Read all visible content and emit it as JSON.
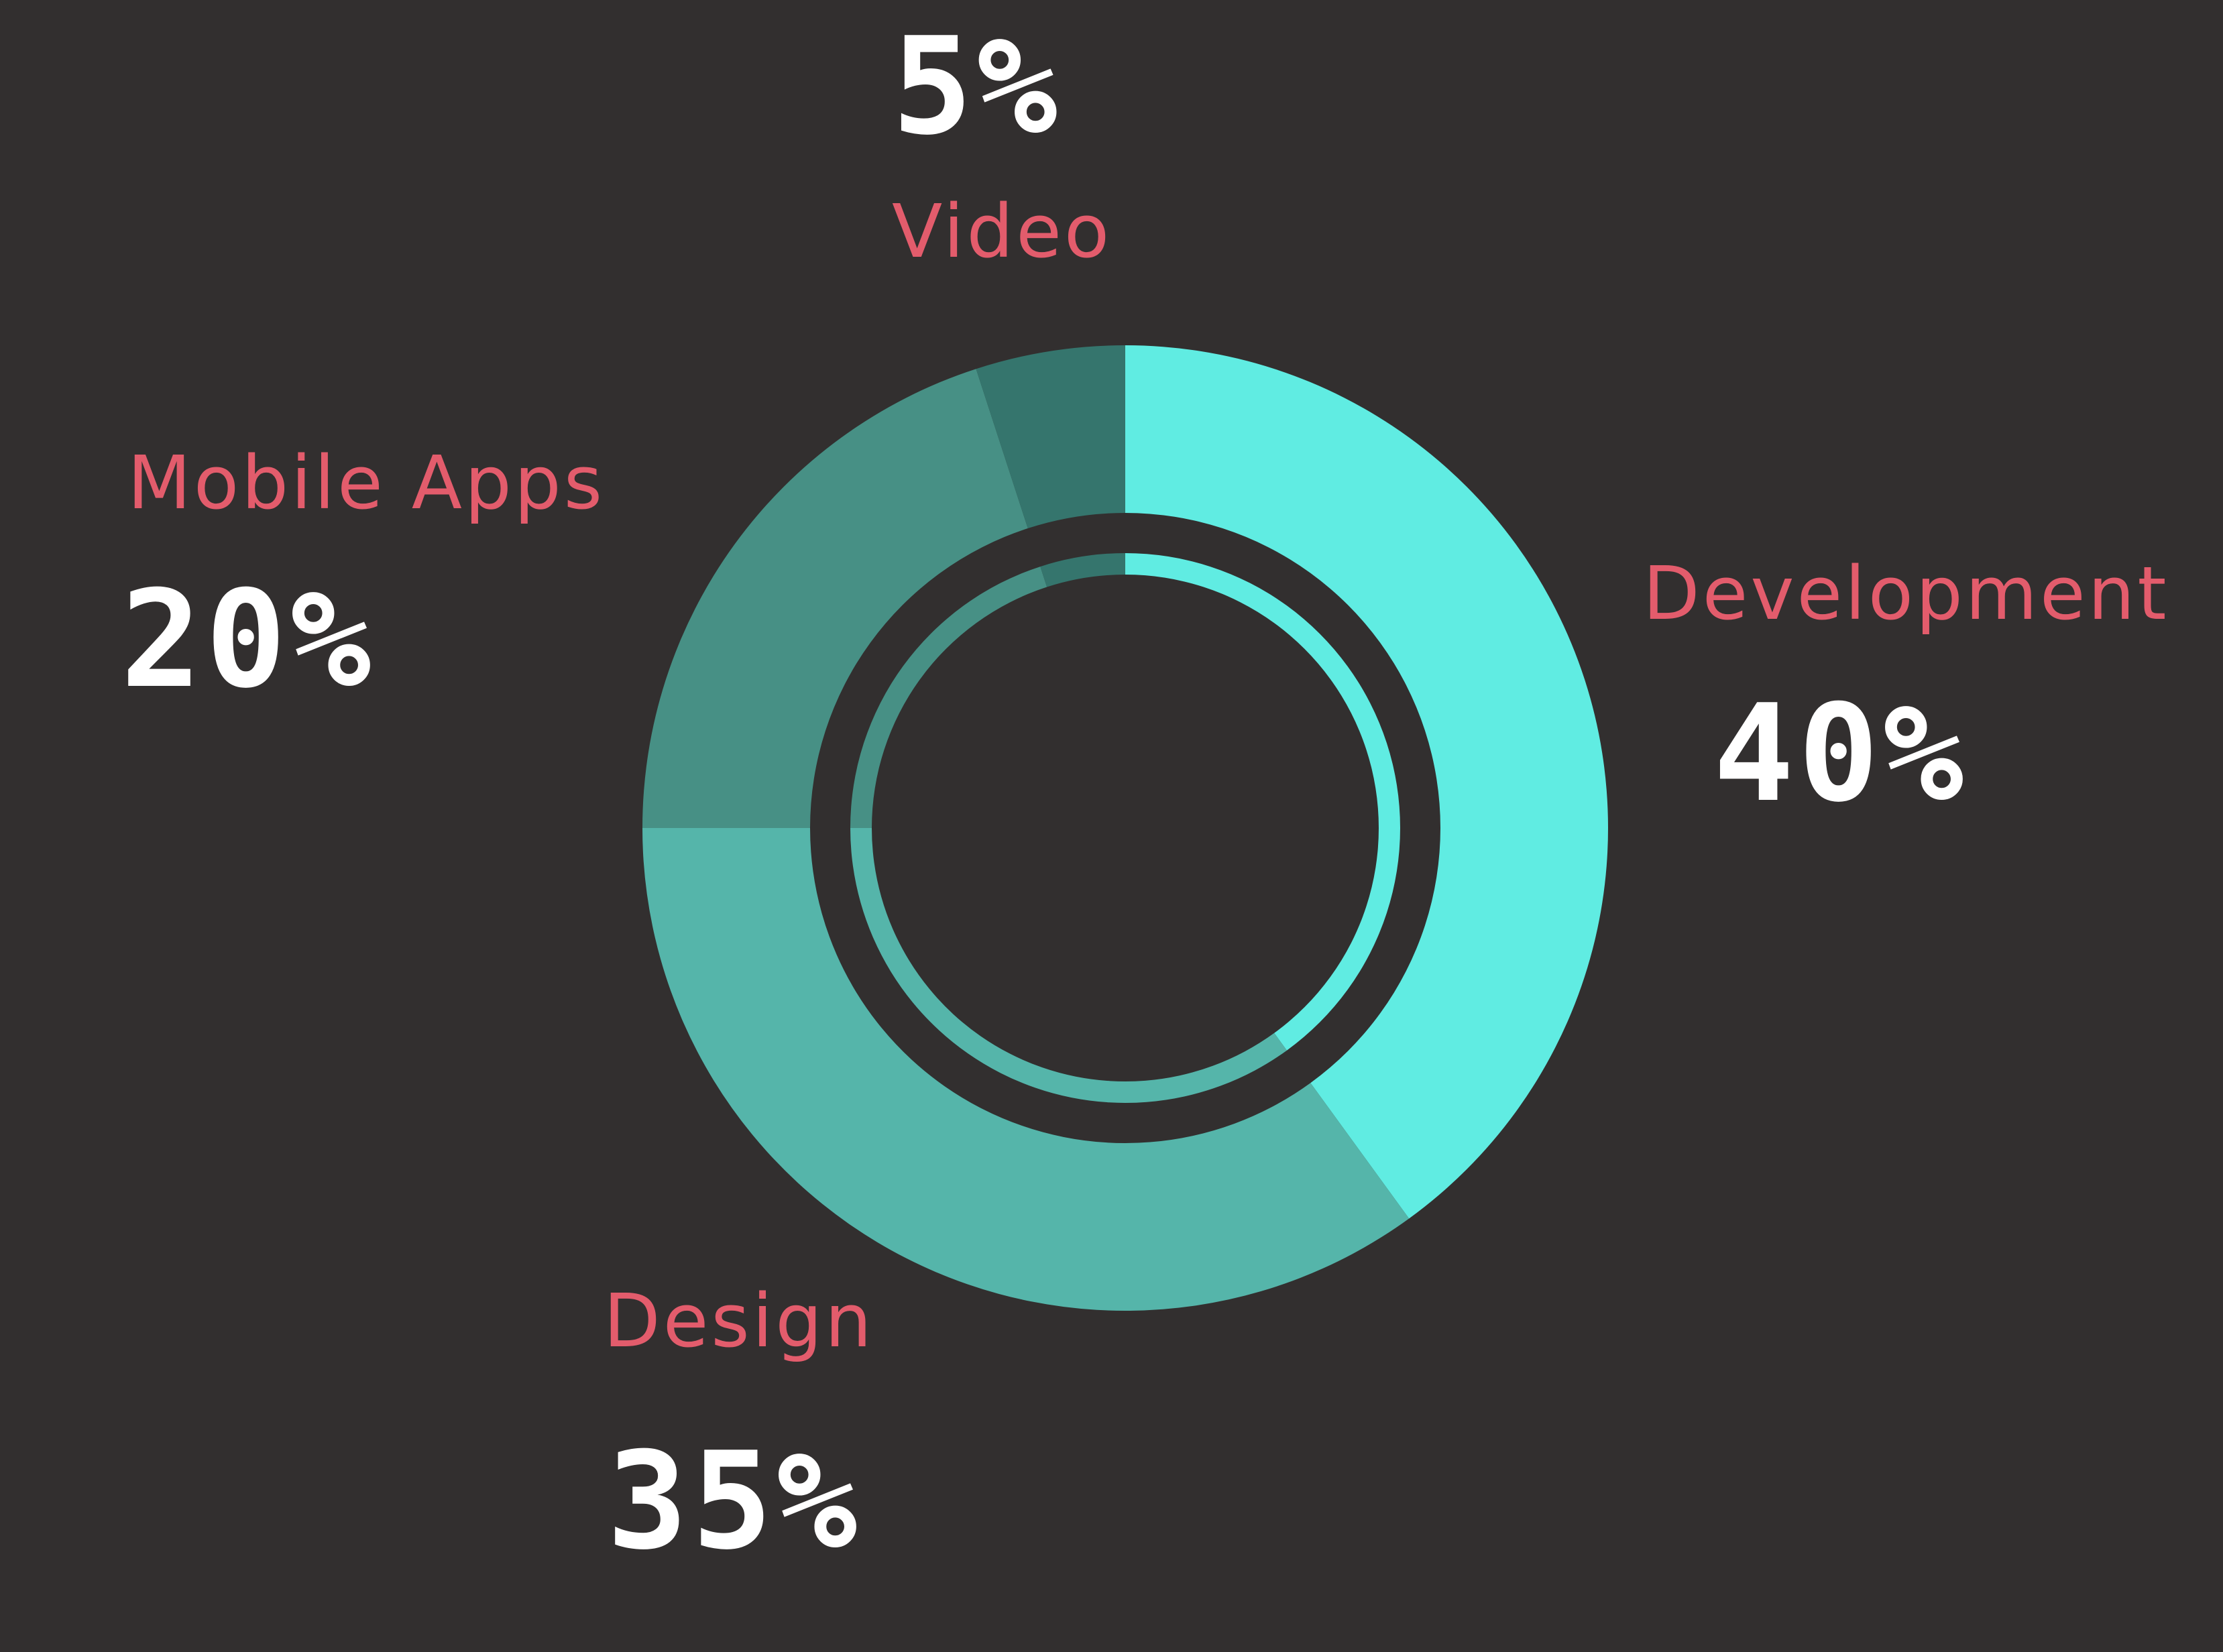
{
  "colors": {
    "background": "#322f2f",
    "label_text": "#e35c6c",
    "value_text": "#ffffff"
  },
  "chart_data": {
    "type": "pie",
    "variant": "donut",
    "title": "",
    "slices": [
      {
        "label": "Development",
        "value": 40,
        "display": "40%",
        "color": "#60ece2"
      },
      {
        "label": "Design",
        "value": 35,
        "display": "35%",
        "color": "#55b5aa"
      },
      {
        "label": "Mobile Apps",
        "value": 20,
        "display": "20%",
        "color": "#479085"
      },
      {
        "label": "Video",
        "value": 5,
        "display": "5%",
        "color": "#35756d"
      }
    ],
    "start_angle_deg": 0,
    "direction": "clockwise"
  }
}
